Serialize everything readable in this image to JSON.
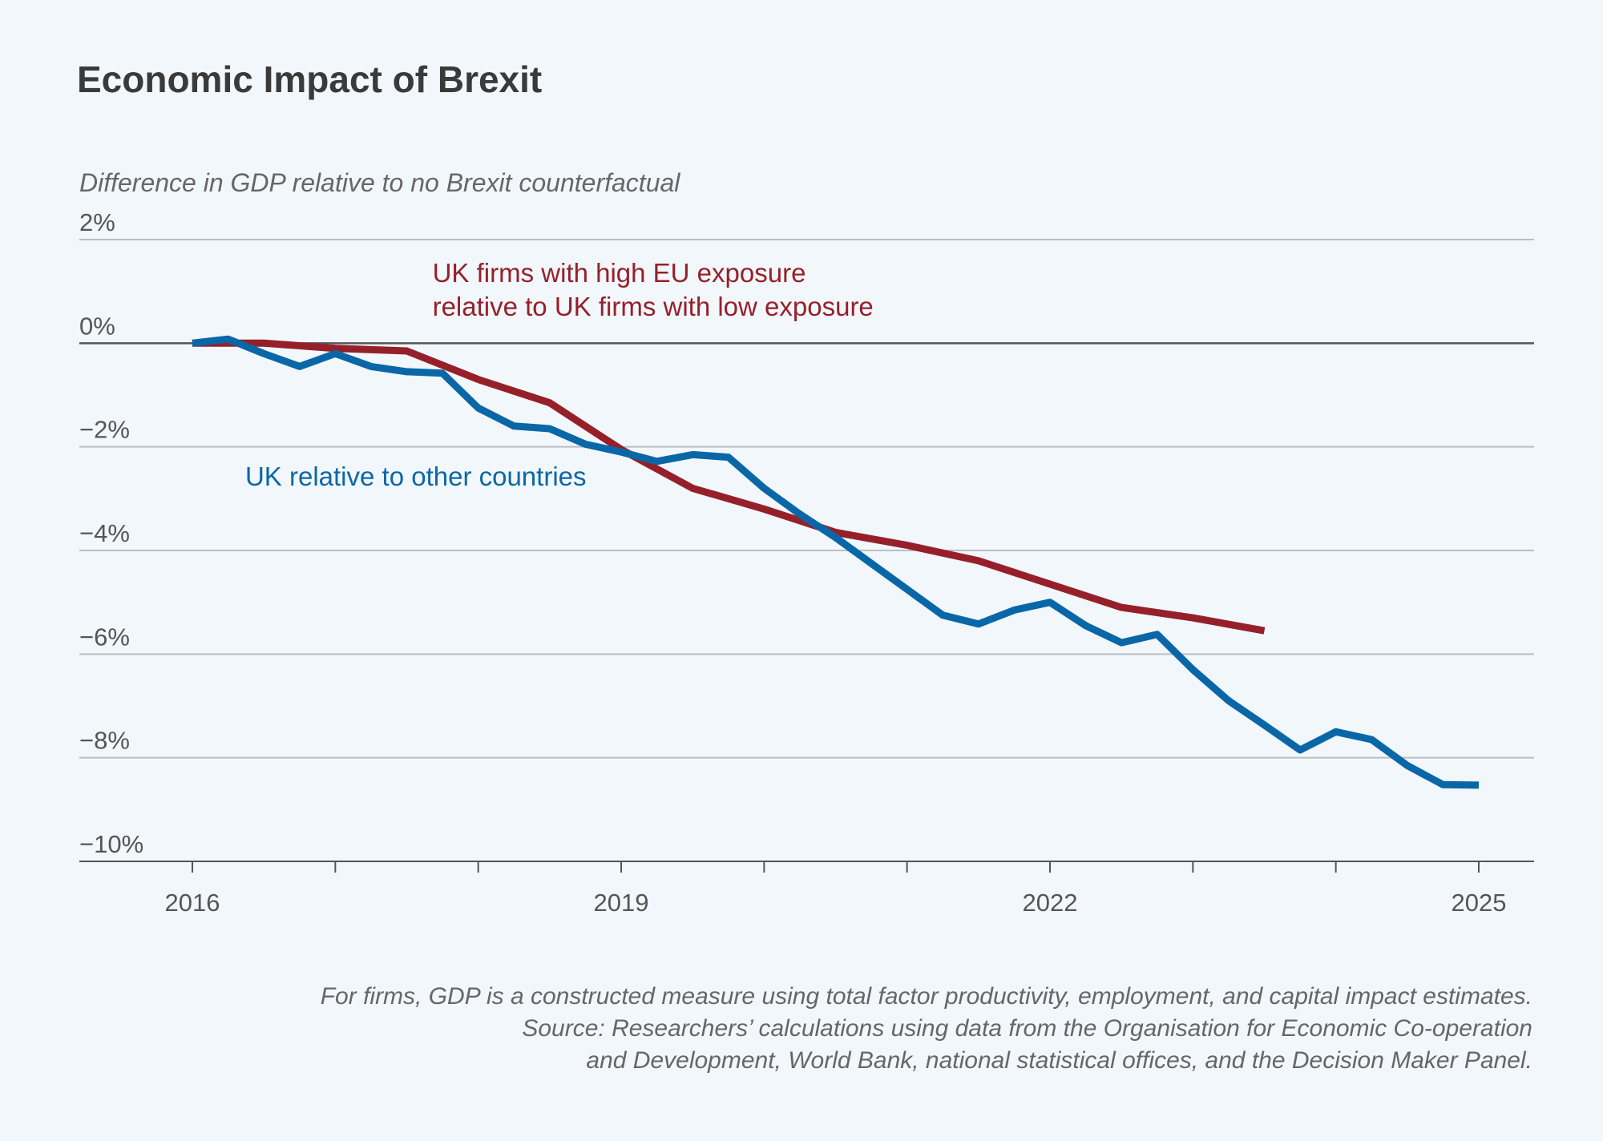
{
  "title": "Economic Impact of Brexit",
  "subtitle": "Difference in GDP relative to no Brexit counterfactual",
  "notes": [
    "For firms, GDP is a constructed measure using total factor productivity, employment, and capital impact estimates.",
    "Source: Researchers’ calculations using data from the Organisation for Economic Co-operation",
    "and Development, World Bank, national statistical offices, and the Decision Maker Panel."
  ],
  "chart_data": {
    "type": "line",
    "title": "Economic Impact of Brexit",
    "ylabel": "Difference in GDP relative to no Brexit counterfactual",
    "xlabel": "",
    "ylim": [
      -10,
      2
    ],
    "xlim": [
      2015.75,
      2025.4
    ],
    "y_ticks": [
      2,
      0,
      -2,
      -4,
      -6,
      -8,
      -10
    ],
    "y_tick_labels": [
      "2%",
      "0%",
      "−2%",
      "−4%",
      "−6%",
      "−8%",
      "−10%"
    ],
    "x_ticks": [
      2016,
      2019,
      2022,
      2025
    ],
    "x_tick_labels": [
      "2016",
      "2019",
      "2022",
      "2025"
    ],
    "x_minor_ticks": [
      2017,
      2018,
      2020,
      2021,
      2023,
      2024
    ],
    "grid": "horizontal",
    "zero_line": true,
    "series": [
      {
        "name": "UK firms with high EU exposure relative to UK firms with low exposure",
        "label_lines": [
          "UK firms with high EU exposure",
          "relative to UK firms with low exposure"
        ],
        "color": "#96202a",
        "points": [
          [
            2016.0,
            0.0
          ],
          [
            2016.5,
            0.0
          ],
          [
            2017.0,
            -0.1
          ],
          [
            2017.5,
            -0.15
          ],
          [
            2018.0,
            -0.7
          ],
          [
            2018.5,
            -1.15
          ],
          [
            2019.0,
            -2.05
          ],
          [
            2019.5,
            -2.8
          ],
          [
            2020.0,
            -3.2
          ],
          [
            2020.5,
            -3.65
          ],
          [
            2021.0,
            -3.9
          ],
          [
            2021.5,
            -4.2
          ],
          [
            2022.0,
            -4.65
          ],
          [
            2022.5,
            -5.1
          ],
          [
            2023.0,
            -5.3
          ],
          [
            2023.5,
            -5.55
          ]
        ]
      },
      {
        "name": "UK relative to other countries",
        "label_lines": [
          "UK relative to other countries"
        ],
        "color": "#0a67a7",
        "points": [
          [
            2016.0,
            0.0
          ],
          [
            2016.25,
            0.08
          ],
          [
            2016.5,
            -0.2
          ],
          [
            2016.75,
            -0.45
          ],
          [
            2017.0,
            -0.2
          ],
          [
            2017.25,
            -0.45
          ],
          [
            2017.5,
            -0.55
          ],
          [
            2017.75,
            -0.58
          ],
          [
            2018.0,
            -1.25
          ],
          [
            2018.25,
            -1.6
          ],
          [
            2018.5,
            -1.65
          ],
          [
            2018.75,
            -1.95
          ],
          [
            2019.0,
            -2.1
          ],
          [
            2019.25,
            -2.28
          ],
          [
            2019.5,
            -2.15
          ],
          [
            2019.75,
            -2.2
          ],
          [
            2020.0,
            -2.8
          ],
          [
            2020.25,
            -3.3
          ],
          [
            2020.5,
            -3.75
          ],
          [
            2020.75,
            -4.25
          ],
          [
            2021.0,
            -4.75
          ],
          [
            2021.25,
            -5.25
          ],
          [
            2021.5,
            -5.42
          ],
          [
            2021.75,
            -5.15
          ],
          [
            2022.0,
            -5.0
          ],
          [
            2022.25,
            -5.45
          ],
          [
            2022.5,
            -5.78
          ],
          [
            2022.75,
            -5.62
          ],
          [
            2023.0,
            -6.3
          ],
          [
            2023.25,
            -6.9
          ],
          [
            2023.5,
            -7.37
          ],
          [
            2023.75,
            -7.85
          ],
          [
            2024.0,
            -7.5
          ],
          [
            2024.25,
            -7.65
          ],
          [
            2024.5,
            -8.15
          ],
          [
            2024.75,
            -8.52
          ],
          [
            2025.0,
            -8.53
          ]
        ]
      }
    ]
  }
}
